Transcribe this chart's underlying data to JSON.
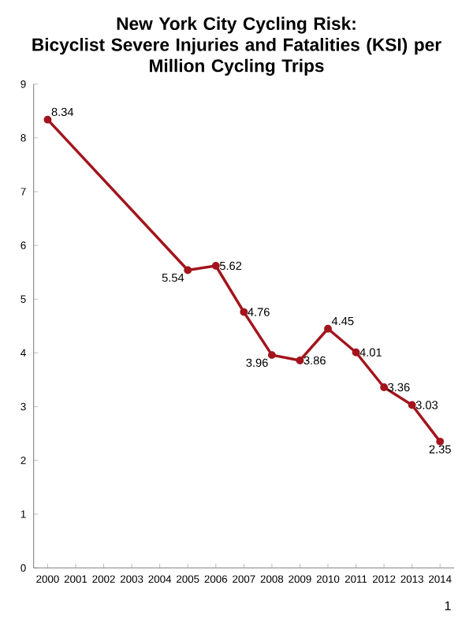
{
  "chart_data": {
    "type": "line",
    "title": "New York City Cycling Risk:\nBicyclist Severe Injuries and Fatalities (KSI) per\nMillion Cycling Trips",
    "x": [
      2000,
      2005,
      2006,
      2007,
      2008,
      2009,
      2010,
      2011,
      2012,
      2013,
      2014
    ],
    "values": [
      8.34,
      5.54,
      5.62,
      4.76,
      3.96,
      3.86,
      4.45,
      4.01,
      3.36,
      3.03,
      2.35
    ],
    "color": "#a3141c",
    "marker": "circle",
    "line_style": "solid",
    "data_labels": true,
    "xlim": [
      1999.5,
      2014.5
    ],
    "xticks": [
      2000,
      2001,
      2002,
      2003,
      2004,
      2005,
      2006,
      2007,
      2008,
      2009,
      2010,
      2011,
      2012,
      2013,
      2014
    ],
    "ylim": [
      0,
      9
    ],
    "yticks": [
      0,
      1,
      2,
      3,
      4,
      5,
      6,
      7,
      8,
      9
    ],
    "annotations": [
      "1"
    ]
  }
}
